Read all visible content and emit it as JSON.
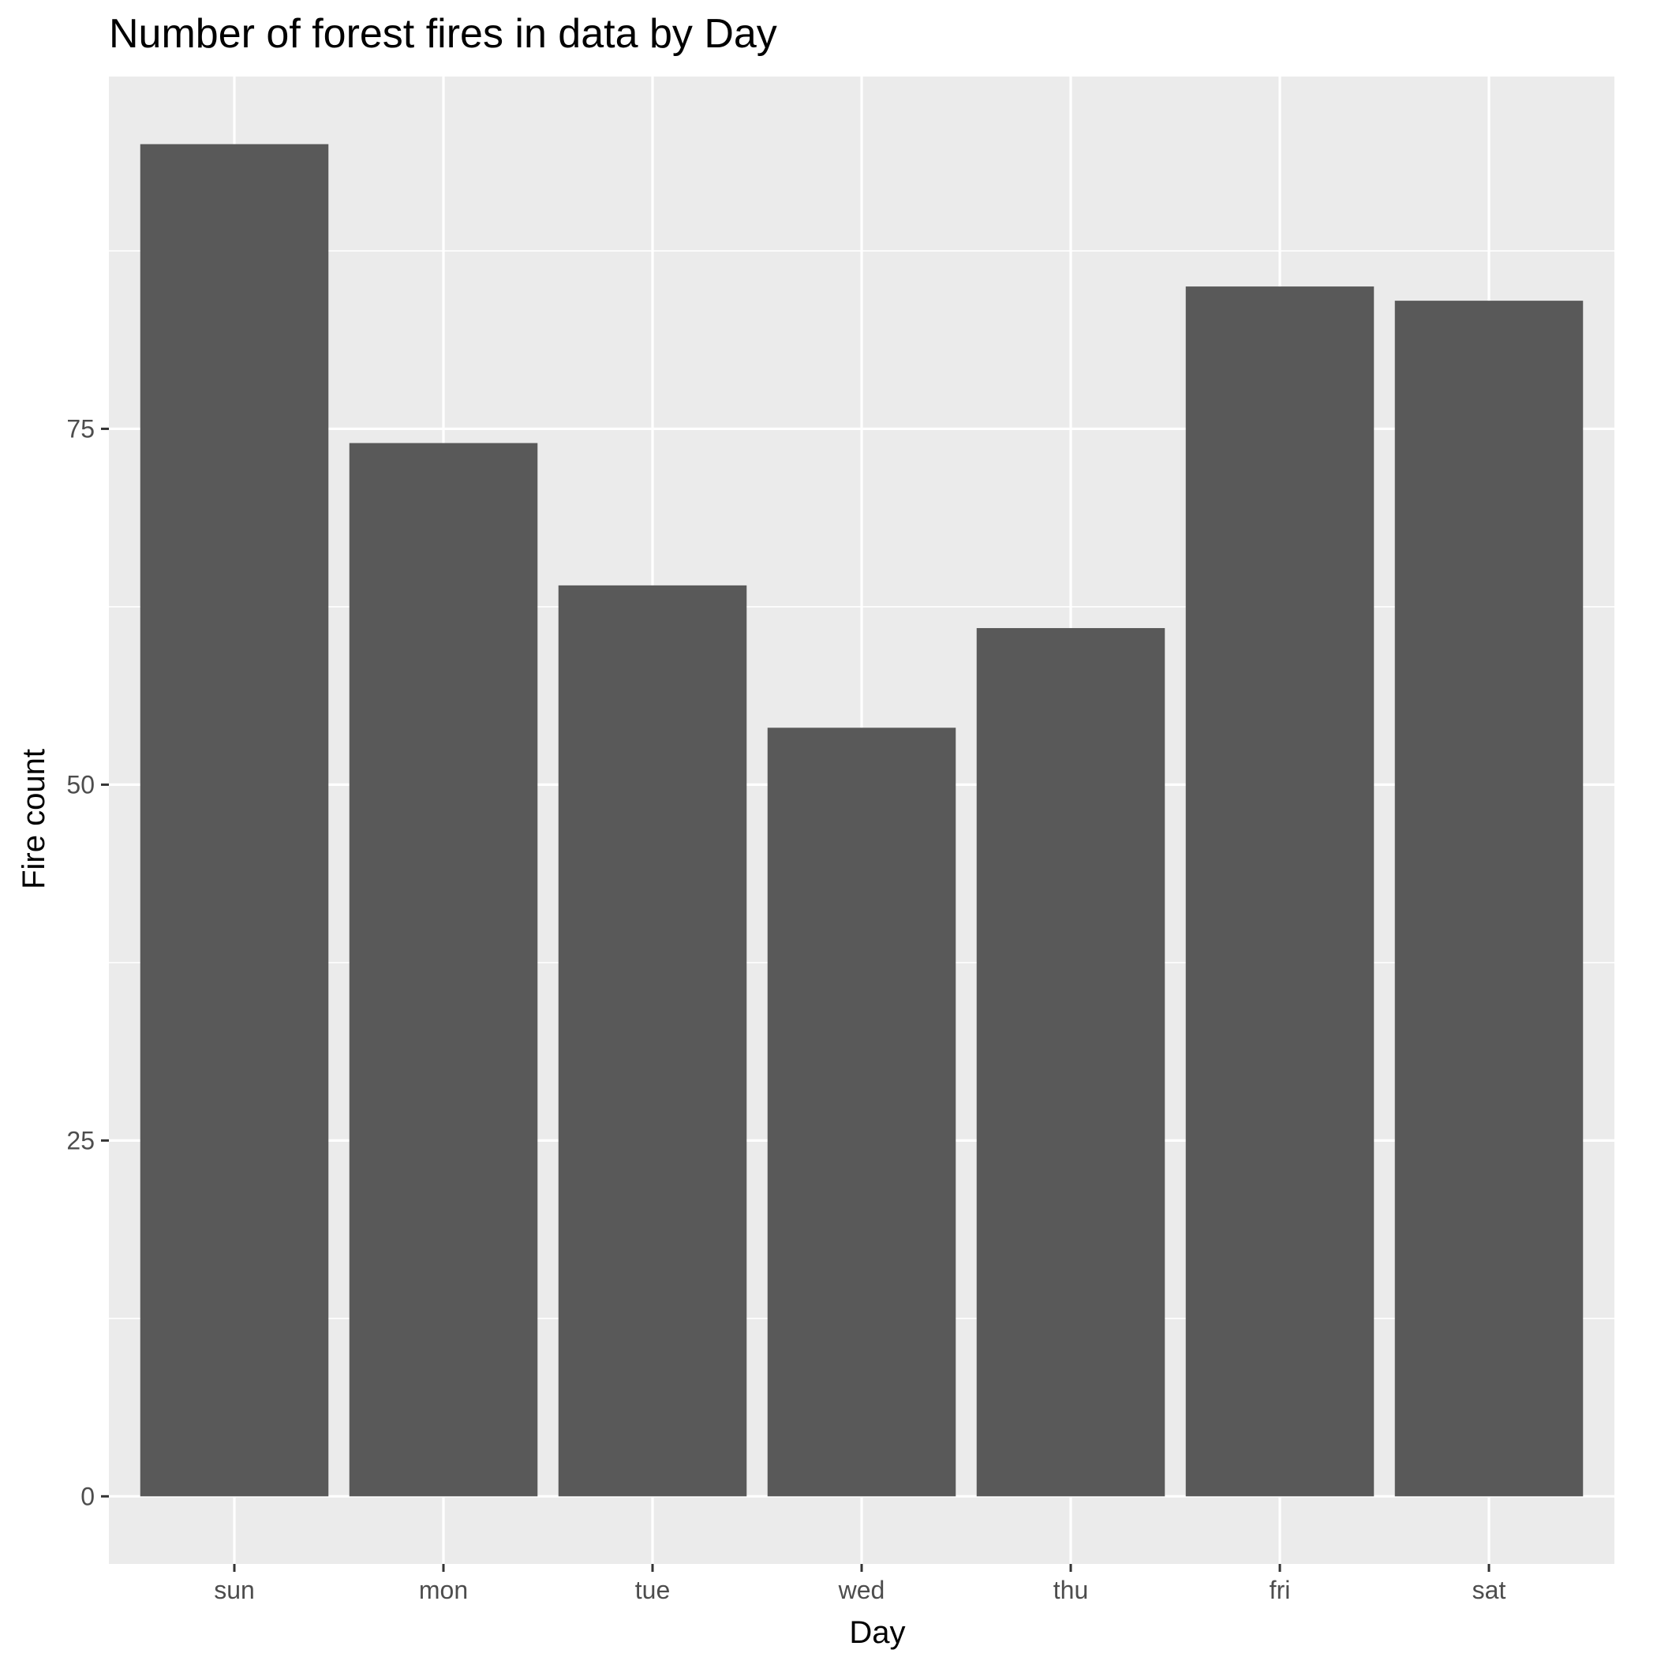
{
  "chart_data": {
    "type": "bar",
    "title": "Number of forest fires in data by Day",
    "xlabel": "Day",
    "ylabel": "Fire count",
    "categories": [
      "sun",
      "mon",
      "tue",
      "wed",
      "thu",
      "fri",
      "sat"
    ],
    "values": [
      95,
      74,
      64,
      54,
      61,
      85,
      84
    ],
    "ylim": [
      -4.75,
      99.75
    ],
    "yticks": [
      0,
      25,
      50,
      75
    ],
    "ytick_labels": [
      "0",
      "25",
      "50",
      "75"
    ],
    "grid": true,
    "legend": "none",
    "colors": {
      "bar": "#595959",
      "panel": "#ebebeb",
      "grid": "#ffffff",
      "tick_label": "#4d4d4d",
      "axis_tick": "#333333"
    }
  }
}
